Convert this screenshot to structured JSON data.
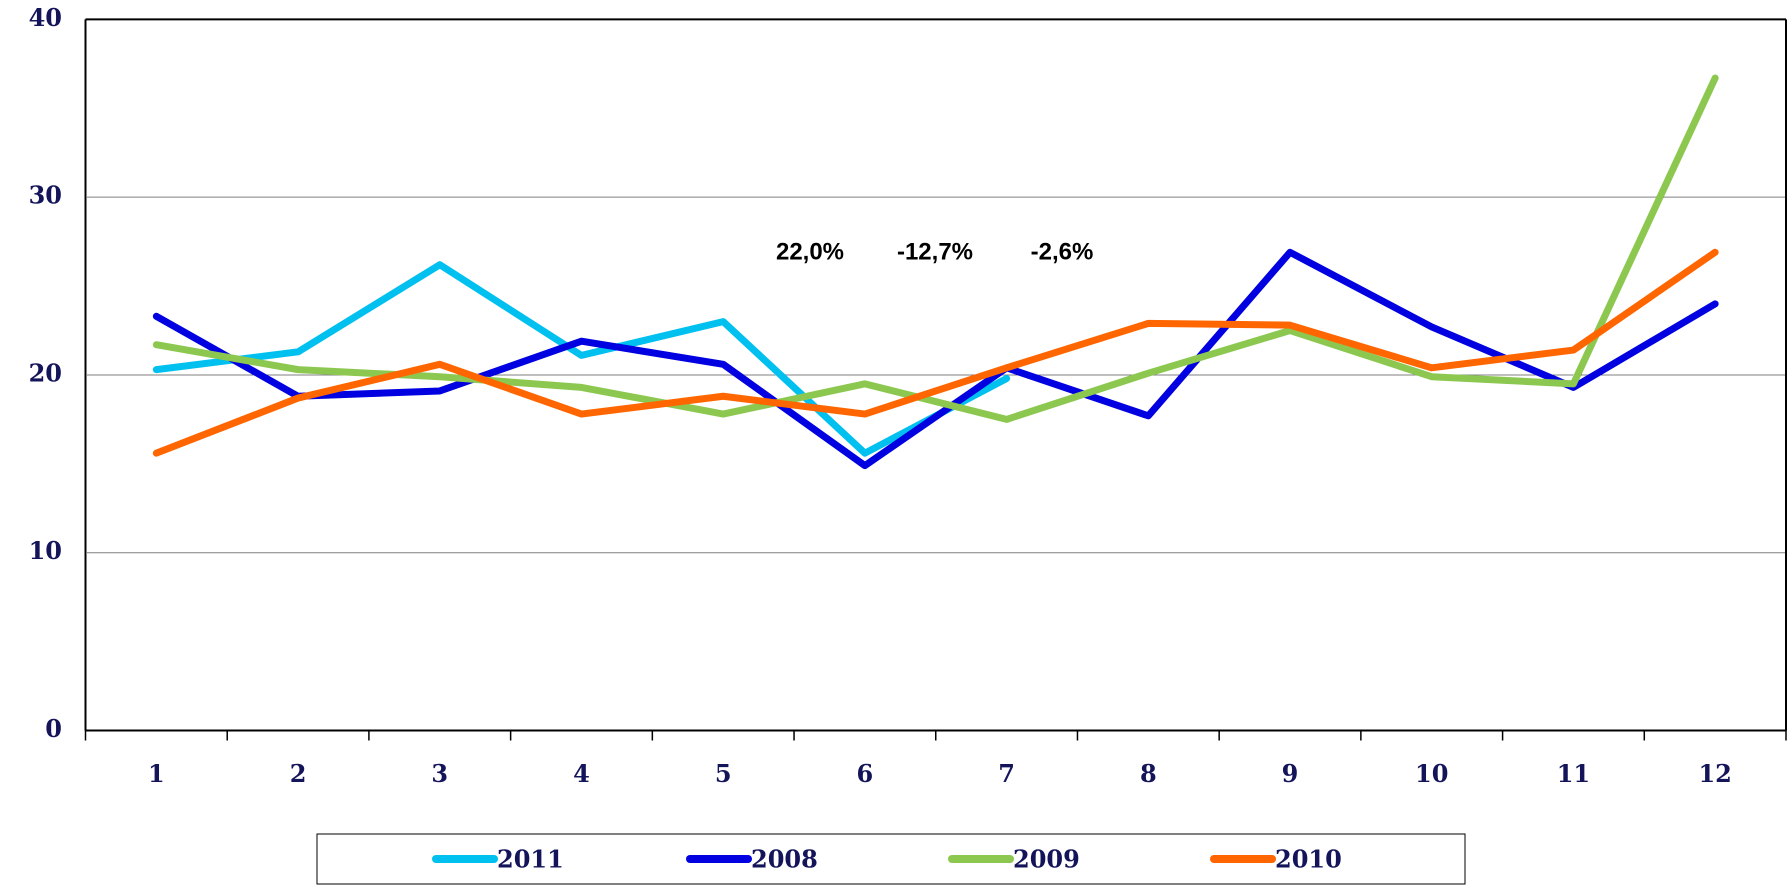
{
  "chart_data": {
    "type": "line",
    "categories": [
      "1",
      "2",
      "3",
      "4",
      "5",
      "6",
      "7",
      "8",
      "9",
      "10",
      "11",
      "12"
    ],
    "series": [
      {
        "name": "2011",
        "color": "#00c0f0",
        "values": [
          20.3,
          21.3,
          26.2,
          21.1,
          23.0,
          15.6,
          19.8,
          null,
          null,
          null,
          null,
          null
        ]
      },
      {
        "name": "2008",
        "color": "#0000e0",
        "values": [
          23.3,
          18.8,
          19.1,
          21.9,
          20.6,
          14.9,
          20.4,
          17.7,
          26.9,
          22.7,
          19.3,
          24.0
        ]
      },
      {
        "name": "2009",
        "color": "#8cc850",
        "values": [
          21.7,
          20.3,
          19.9,
          19.3,
          17.8,
          19.5,
          17.5,
          20.1,
          22.5,
          19.9,
          19.5,
          36.7
        ]
      },
      {
        "name": "2010",
        "color": "#ff6600",
        "values": [
          15.6,
          18.7,
          20.6,
          17.8,
          18.8,
          17.8,
          20.4,
          22.9,
          22.8,
          20.4,
          21.4,
          26.9
        ]
      }
    ],
    "annotations": [
      "22,0%",
      "-12,7%",
      "-2,6%"
    ],
    "ylim": [
      0,
      40
    ],
    "yticks": [
      0,
      10,
      20,
      30,
      40
    ],
    "grid": true,
    "legend": "bottom"
  }
}
